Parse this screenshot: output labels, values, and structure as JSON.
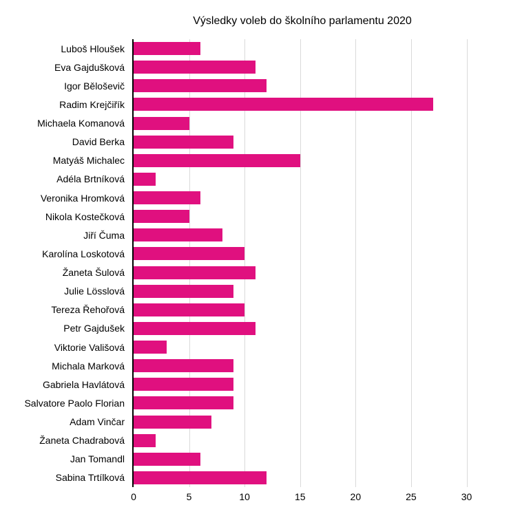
{
  "page": {
    "background": "#ffffff"
  },
  "chart_data": {
    "type": "bar",
    "orientation": "horizontal",
    "title": "Výsledky voleb do školního parlamentu 2020",
    "categories": [
      "Luboš Hloušek",
      "Eva Gajdušková",
      "Igor Běloševič",
      "Radim Krejčiřík",
      "Michaela Komanová",
      "David Berka",
      "Matyáš Michalec",
      "Adéla Brtníková",
      "Veronika Hromková",
      "Nikola Kostečková",
      "Jiří Čuma",
      "Karolína Loskotová",
      "Žaneta Šulová",
      "Julie Lösslová",
      "Tereza Řehořová",
      "Petr Gajdušek",
      "Viktorie Vališová",
      "Michala Marková",
      "Gabriela Havlátová",
      "Salvatore Paolo Florian",
      "Adam Vinčar",
      "Žaneta Chadrabová",
      "Jan Tomandl",
      "Sabina Trtílková"
    ],
    "values": [
      6,
      11,
      12,
      27,
      5,
      9,
      15,
      2,
      6,
      5,
      8,
      10,
      11,
      9,
      10,
      11,
      3,
      9,
      9,
      9,
      7,
      2,
      6,
      12
    ],
    "xlabel": "",
    "ylabel": "",
    "xlim": [
      0,
      34
    ],
    "xticks": [
      0,
      5,
      10,
      15,
      20,
      25,
      30
    ],
    "grid": "vertical",
    "legend": "none",
    "bar_color": "#E0107F",
    "gridline_color": "#D9D9D9",
    "axis_color": "#000000",
    "text_color": "#000000"
  }
}
